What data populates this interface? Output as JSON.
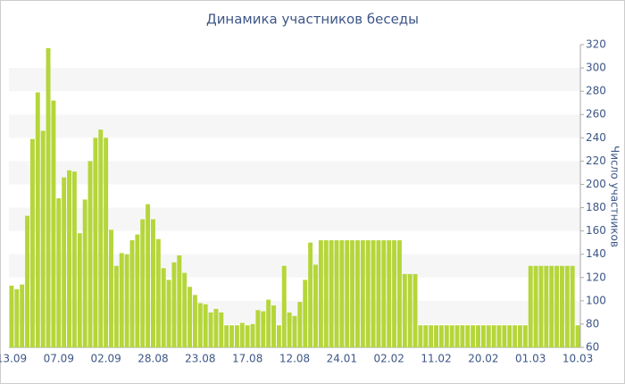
{
  "chart_data": {
    "type": "bar",
    "title": "Динамика участников беседы",
    "y_label": "Число участников",
    "categories": [
      "13.09",
      null,
      null,
      null,
      null,
      null,
      null,
      null,
      null,
      "07.09",
      null,
      null,
      null,
      null,
      null,
      null,
      null,
      null,
      "02.09",
      null,
      null,
      null,
      null,
      null,
      null,
      null,
      null,
      "28.08",
      null,
      null,
      null,
      null,
      null,
      null,
      null,
      null,
      "23.08",
      null,
      null,
      null,
      null,
      null,
      null,
      null,
      null,
      "17.08",
      null,
      null,
      null,
      null,
      null,
      null,
      null,
      null,
      "12.08",
      null,
      null,
      null,
      null,
      null,
      null,
      null,
      null,
      "24.01",
      null,
      null,
      null,
      null,
      null,
      null,
      null,
      null,
      "02.02",
      null,
      null,
      null,
      null,
      null,
      null,
      null,
      null,
      "11.02",
      null,
      null,
      null,
      null,
      null,
      null,
      null,
      null,
      "20.02",
      null,
      null,
      null,
      null,
      null,
      null,
      null,
      null,
      "01.03",
      null,
      null,
      null,
      null,
      null,
      null,
      null,
      null,
      "10.03"
    ],
    "values": [
      113,
      110,
      114,
      173,
      239,
      279,
      246,
      317,
      272,
      188,
      206,
      212,
      211,
      158,
      187,
      220,
      240,
      247,
      240,
      161,
      130,
      141,
      140,
      152,
      157,
      170,
      183,
      170,
      153,
      128,
      118,
      133,
      139,
      124,
      112,
      105,
      98,
      97,
      90,
      93,
      90,
      79,
      79,
      79,
      81,
      79,
      80,
      92,
      91,
      101,
      96,
      79,
      130,
      90,
      87,
      99,
      118,
      150,
      131,
      152,
      152,
      152,
      152,
      152,
      152,
      152,
      152,
      152,
      152,
      152,
      152,
      152,
      152,
      152,
      152,
      123,
      123,
      123,
      79,
      79,
      79,
      79,
      79,
      79,
      79,
      79,
      79,
      79,
      79,
      79,
      79,
      79,
      79,
      79,
      79,
      79,
      79,
      79,
      79,
      130,
      130,
      130,
      130,
      130,
      130,
      130,
      130,
      130,
      79
    ],
    "color": "#b5d63a",
    "ylim": [
      60,
      320
    ],
    "yticks": [
      60,
      80,
      100,
      120,
      140,
      160,
      180,
      200,
      220,
      240,
      260,
      280,
      300,
      320
    ],
    "grid": true
  }
}
